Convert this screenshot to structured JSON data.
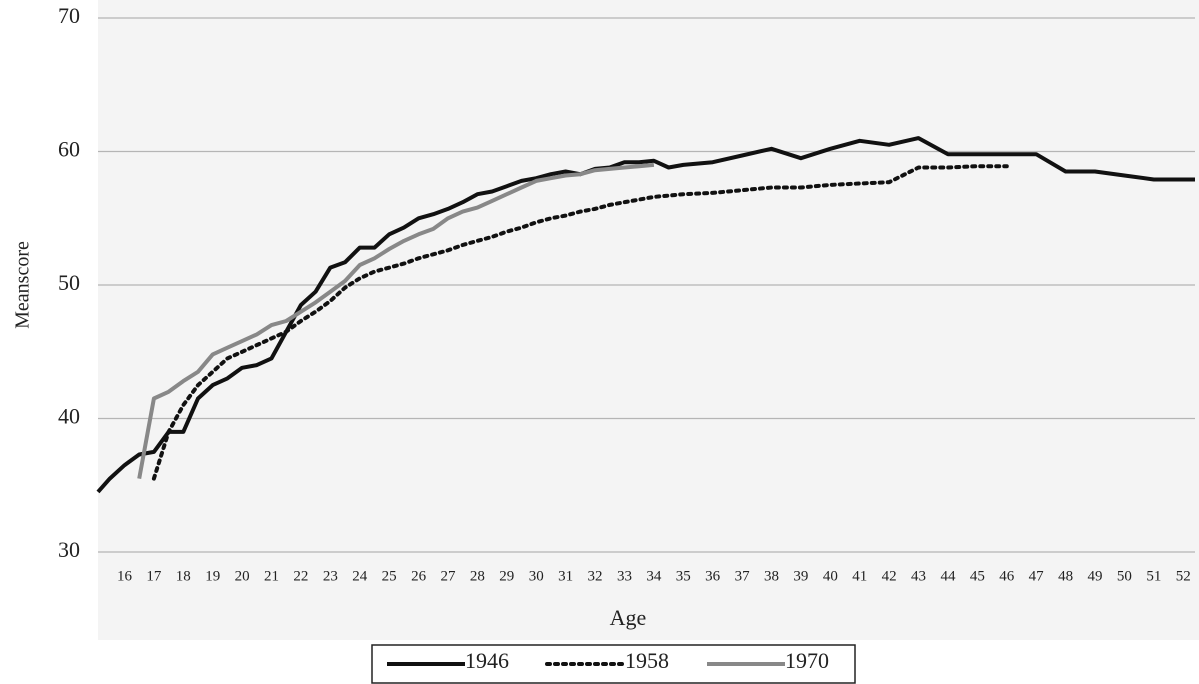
{
  "chart_data": {
    "type": "line",
    "x_label": "Age",
    "y_label": "Meanscore",
    "x": [
      15.1,
      15.5,
      16,
      16.5,
      17,
      17.5,
      18,
      18.5,
      19,
      19.5,
      20,
      20.5,
      21,
      21.5,
      22,
      22.5,
      23,
      23.5,
      24,
      24.5,
      25,
      25.5,
      26,
      26.5,
      27,
      27.5,
      28,
      28.5,
      29,
      29.5,
      30,
      30.5,
      31,
      31.5,
      32,
      32.5,
      33,
      33.5,
      34,
      34.5,
      35,
      36,
      37,
      38,
      39,
      40,
      41,
      42,
      43,
      44,
      45,
      46,
      47,
      48,
      49,
      50,
      51,
      52,
      52.4
    ],
    "series": [
      {
        "name": "1946",
        "color": "#111111",
        "style": "solid",
        "values": [
          34.5,
          35.5,
          36.5,
          37.3,
          37.5,
          39,
          39,
          41.5,
          42.5,
          43,
          43.8,
          44,
          44.5,
          46.5,
          48.5,
          49.5,
          51.3,
          51.7,
          52.8,
          52.8,
          53.8,
          54.3,
          55,
          55.3,
          55.7,
          56.2,
          56.8,
          57,
          57.4,
          57.8,
          58,
          58.3,
          58.5,
          58.3,
          58.7,
          58.8,
          59.2,
          59.2,
          59.3,
          58.8,
          59,
          59.2,
          59.7,
          60.2,
          59.5,
          60.2,
          60.8,
          60.5,
          61,
          59.8,
          59.8,
          59.8,
          59.8,
          58.5,
          58.5,
          58.2,
          57.9,
          57.9,
          57.9
        ]
      },
      {
        "name": "1958",
        "color": "#111111",
        "style": "dotted",
        "values": [
          null,
          null,
          null,
          null,
          35.5,
          39,
          41,
          42.5,
          43.5,
          44.5,
          45,
          45.5,
          46,
          46.5,
          47.3,
          48,
          48.8,
          49.8,
          50.5,
          51,
          51.3,
          51.6,
          52,
          52.3,
          52.6,
          53,
          53.3,
          53.6,
          54,
          54.3,
          54.7,
          55,
          55.2,
          55.5,
          55.7,
          56,
          56.2,
          56.4,
          56.6,
          56.7,
          56.8,
          56.9,
          57.1,
          57.3,
          57.3,
          57.5,
          57.6,
          57.7,
          58.8,
          58.8,
          58.9,
          58.9,
          null,
          null,
          null,
          null,
          null,
          null,
          null
        ]
      },
      {
        "name": "1970",
        "color": "#888888",
        "style": "solid",
        "values": [
          null,
          null,
          null,
          35.5,
          41.5,
          42,
          42.8,
          43.5,
          44.8,
          45.3,
          45.8,
          46.3,
          47,
          47.3,
          48,
          48.7,
          49.5,
          50.3,
          51.5,
          52,
          52.7,
          53.3,
          53.8,
          54.2,
          55,
          55.5,
          55.8,
          56.3,
          56.8,
          57.3,
          57.8,
          58,
          58.2,
          58.3,
          58.6,
          58.7,
          58.8,
          58.9,
          59,
          null,
          null,
          null,
          null,
          null,
          null,
          null,
          null,
          null,
          null,
          null,
          null,
          null,
          null,
          null,
          null,
          null,
          null,
          null,
          null
        ]
      }
    ],
    "xlim": [
      15.1,
      52.4
    ],
    "xticks": [
      16,
      17,
      18,
      19,
      20,
      21,
      22,
      23,
      24,
      25,
      26,
      27,
      28,
      29,
      30,
      31,
      32,
      33,
      34,
      35,
      36,
      37,
      38,
      39,
      40,
      41,
      42,
      43,
      44,
      45,
      46,
      47,
      48,
      49,
      50,
      51,
      52
    ],
    "ylim": [
      30,
      70
    ],
    "yticks": [
      30,
      40,
      50,
      60,
      70
    ],
    "grid": true,
    "legend": "bottom"
  }
}
